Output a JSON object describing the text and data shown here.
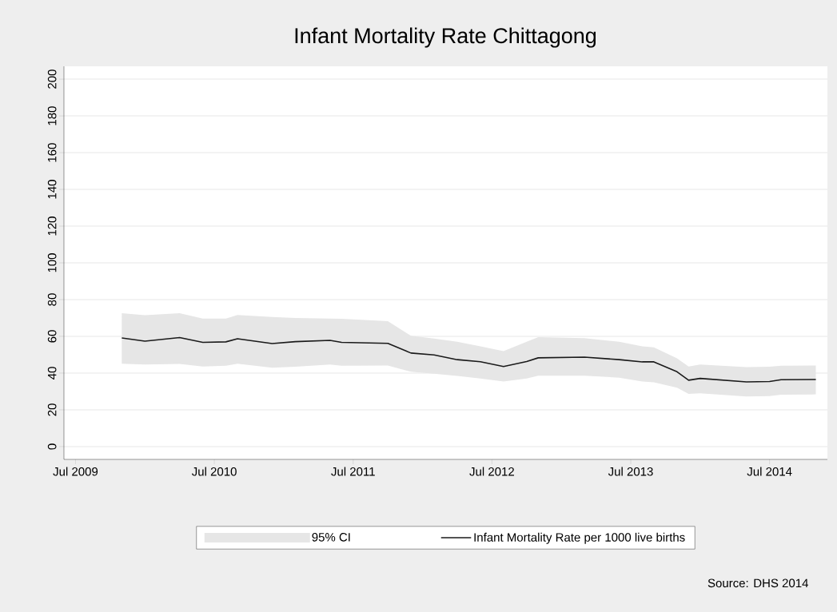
{
  "chart_data": {
    "type": "line",
    "title": "Infant Mortality Rate Chittagong",
    "x": [
      "2009-11",
      "2010-01",
      "2010-04",
      "2010-06",
      "2010-08",
      "2010-09",
      "2010-12",
      "2011-02",
      "2011-05",
      "2011-06",
      "2011-10",
      "2011-12",
      "2012-02",
      "2012-04",
      "2012-06",
      "2012-08",
      "2012-10",
      "2012-11",
      "2013-03",
      "2013-06",
      "2013-08",
      "2013-09",
      "2013-11",
      "2013-12",
      "2014-01",
      "2014-05",
      "2014-07",
      "2014-08",
      "2014-11"
    ],
    "series": [
      {
        "name": "Infant Mortality Rate per 1000 live births",
        "color": "#1a1a1a",
        "values": [
          59.1,
          57.4,
          59.3,
          56.7,
          57,
          58.7,
          56.1,
          57.1,
          57.8,
          56.7,
          56.2,
          50.9,
          49.9,
          47.3,
          46.2,
          43.6,
          46.3,
          48.3,
          48.7,
          47.3,
          46.1,
          46.1,
          40.7,
          36.1,
          37.1,
          35.2,
          35.4,
          36.4,
          36.5
        ],
        "lower": [
          45.1,
          44.7,
          45,
          43.6,
          44,
          45.1,
          42.9,
          43.5,
          44.7,
          44,
          44.1,
          40.7,
          39.7,
          38.5,
          37,
          35.4,
          37,
          38.6,
          38.6,
          37.5,
          35.4,
          35,
          32,
          28.7,
          29,
          27.3,
          27.5,
          28.2,
          28.4
        ],
        "upper": [
          72.6,
          71.5,
          72.6,
          69.7,
          69.7,
          71.6,
          70.5,
          70,
          69.7,
          69.5,
          68.3,
          60.3,
          58.8,
          57,
          54.5,
          51.9,
          57,
          59.6,
          59,
          57,
          54.5,
          54,
          48,
          43.6,
          44.6,
          43.2,
          43.5,
          44,
          44.1
        ]
      }
    ],
    "xlim": [
      "2009-06",
      "2014-12"
    ],
    "xticks": [
      {
        "value": "2009-07",
        "label": "Jul 2009"
      },
      {
        "value": "2010-07",
        "label": "Jul 2010"
      },
      {
        "value": "2011-07",
        "label": "Jul 2011"
      },
      {
        "value": "2012-07",
        "label": "Jul 2012"
      },
      {
        "value": "2013-07",
        "label": "Jul 2013"
      },
      {
        "value": "2014-07",
        "label": "Jul 2014"
      }
    ],
    "ylim": [
      -7,
      207
    ],
    "yticks": [
      0,
      20,
      40,
      60,
      80,
      100,
      120,
      140,
      160,
      180,
      200
    ],
    "grid": "y",
    "legend": "bottom",
    "marker": "none",
    "line_style": "solid",
    "annotations": [
      "95% CI",
      "Source: DHS 2014"
    ]
  }
}
